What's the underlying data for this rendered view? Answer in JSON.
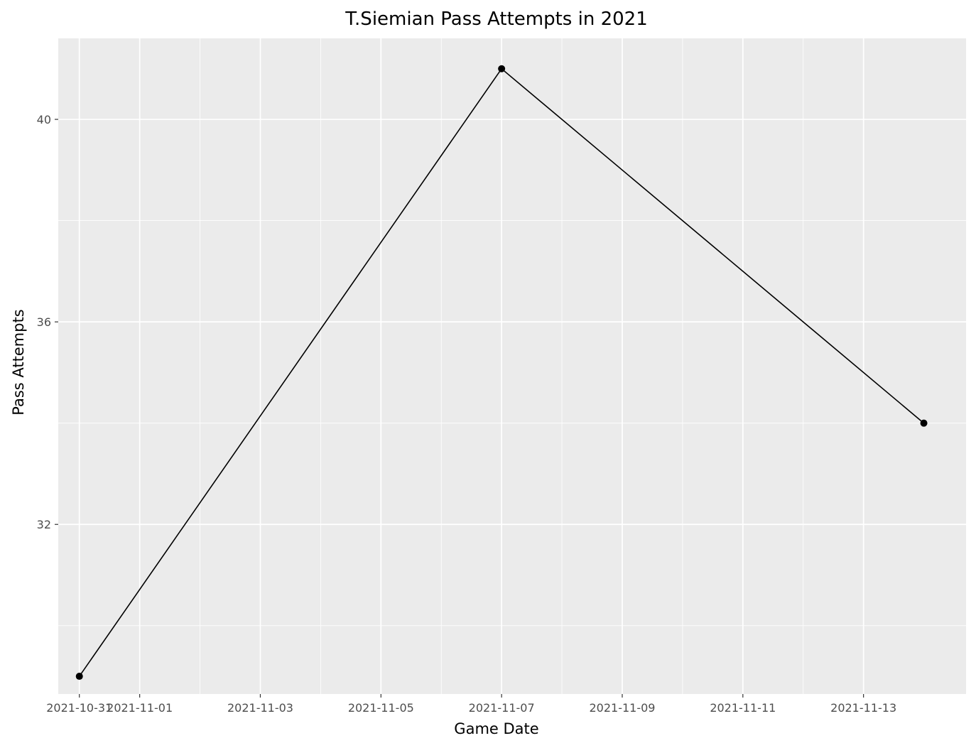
{
  "chart_data": {
    "type": "line",
    "title": "T.Siemian Pass Attempts in 2021",
    "xlabel": "Game Date",
    "ylabel": "Pass Attempts",
    "x_dates": [
      "2021-10-31",
      "2021-11-07",
      "2021-11-14"
    ],
    "y": [
      29,
      41,
      34
    ],
    "xlim": [
      "2021-10-30.65",
      "2021-11-14.7"
    ],
    "ylim": [
      28.65,
      41.6
    ],
    "x_ticks": [
      "2021-10-31",
      "2021-11-01",
      "2021-11-03",
      "2021-11-05",
      "2021-11-07",
      "2021-11-09",
      "2021-11-11",
      "2021-11-13"
    ],
    "x_tick_labels": [
      "2021-10-31",
      "2021-11-01",
      "2021-11-03",
      "2021-11-05",
      "2021-11-07",
      "2021-11-09",
      "2021-11-11",
      "2021-11-13"
    ],
    "x_minor_ticks": [
      "2021-11-02",
      "2021-11-04",
      "2021-11-06",
      "2021-11-08",
      "2021-11-10",
      "2021-11-12"
    ],
    "y_ticks": [
      32,
      36,
      40
    ],
    "y_tick_labels": [
      "32",
      "36",
      "40"
    ],
    "y_minor_ticks": [
      30,
      34,
      38
    ],
    "grid": true,
    "legend": "none",
    "colors": {
      "panel": "#ebebeb",
      "grid": "#ffffff",
      "line": "#000000",
      "point": "#000000",
      "tick_text": "#4d4d4d"
    }
  }
}
